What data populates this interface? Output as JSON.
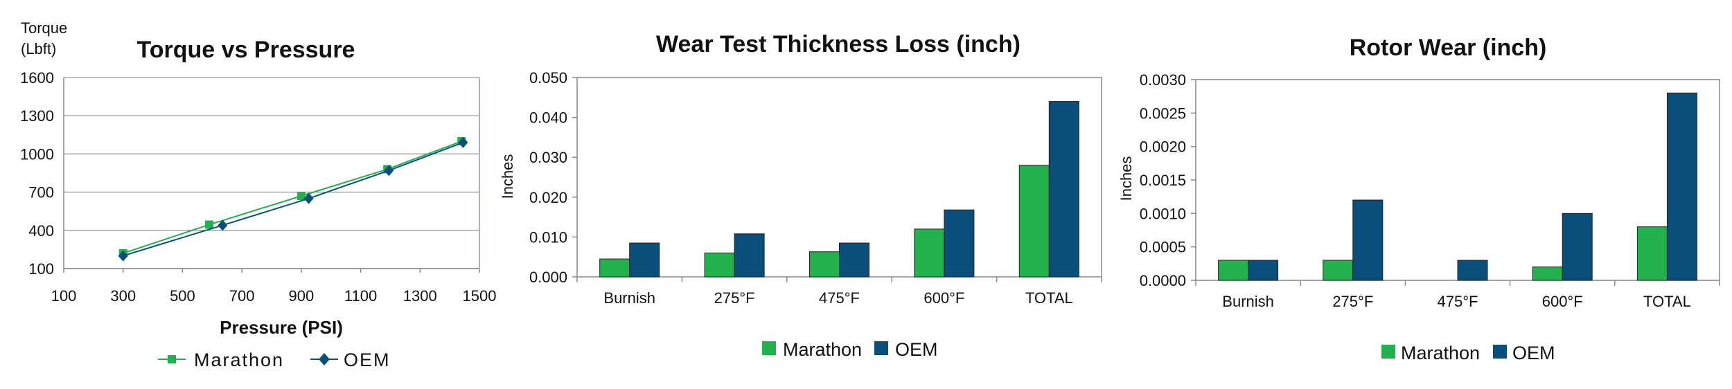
{
  "colors": {
    "marathon": "#22b14c",
    "oem": "#0a4f7c",
    "grid": "#a6a6a6",
    "axis": "#888888",
    "axis_right": "#9fb3d6"
  },
  "chart_data": [
    {
      "type": "line",
      "title": "Torque vs Pressure",
      "xlabel": "Pressure (PSI)",
      "ylabel_lines": [
        "Torque",
        "(Lbft)"
      ],
      "xlim": [
        100,
        1500
      ],
      "ylim": [
        100,
        1600
      ],
      "xticks": [
        100,
        300,
        500,
        700,
        900,
        1100,
        1300,
        1500
      ],
      "yticks": [
        100,
        400,
        700,
        1000,
        1300,
        1600
      ],
      "grid": true,
      "legend_position": "bottom",
      "series": [
        {
          "name": "Marathon",
          "marker": "square",
          "x": [
            300,
            590,
            900,
            1190,
            1440
          ],
          "y": [
            220,
            445,
            670,
            880,
            1100
          ]
        },
        {
          "name": "OEM",
          "marker": "diamond",
          "x": [
            300,
            635,
            925,
            1195,
            1445
          ],
          "y": [
            200,
            440,
            650,
            870,
            1090
          ]
        }
      ]
    },
    {
      "type": "bar",
      "title": "Wear Test Thickness Loss (inch)",
      "xlabel": "",
      "ylabel": "Inches",
      "ylim": [
        0,
        0.05
      ],
      "yticks": [
        "0.000",
        "0.010",
        "0.020",
        "0.030",
        "0.040",
        "0.050"
      ],
      "grid": false,
      "legend_position": "bottom",
      "categories": [
        "Burnish",
        "275°F",
        "475°F",
        "600°F",
        "TOTAL"
      ],
      "series": [
        {
          "name": "Marathon",
          "values": [
            0.0045,
            0.006,
            0.0063,
            0.012,
            0.028
          ]
        },
        {
          "name": "OEM",
          "values": [
            0.0085,
            0.0108,
            0.0085,
            0.0168,
            0.044
          ]
        }
      ]
    },
    {
      "type": "bar",
      "title": "Rotor Wear (inch)",
      "xlabel": "",
      "ylabel": "Inches",
      "ylim": [
        0,
        0.003
      ],
      "yticks": [
        "0.0000",
        "0.0005",
        "0.0010",
        "0.0015",
        "0.0020",
        "0.0025",
        "0.0030"
      ],
      "grid": false,
      "legend_position": "bottom",
      "categories": [
        "Burnish",
        "275°F",
        "475°F",
        "600°F",
        "TOTAL"
      ],
      "series": [
        {
          "name": "Marathon",
          "values": [
            0.0003,
            0.0003,
            0,
            0.0002,
            0.0008
          ]
        },
        {
          "name": "OEM",
          "values": [
            0.0003,
            0.0012,
            0.0003,
            0.001,
            0.0028
          ]
        }
      ]
    }
  ]
}
